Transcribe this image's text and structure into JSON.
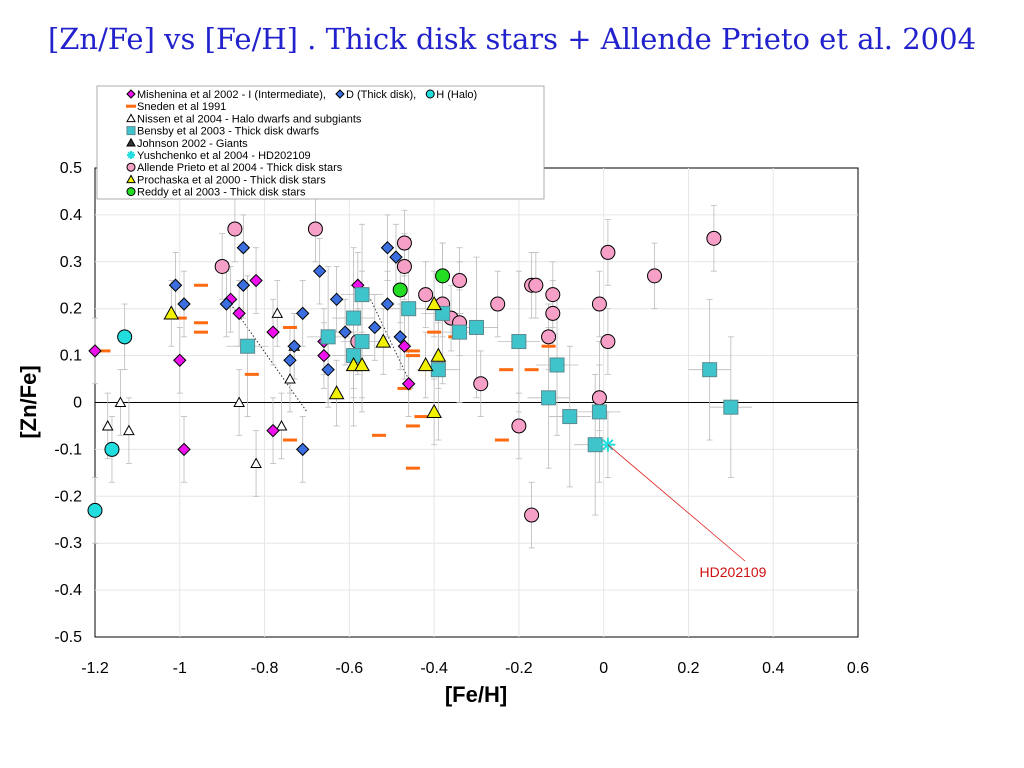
{
  "slide": {
    "title": "[Zn/Fe] vs [Fe/H] . Thick disk stars + Allende Prieto et al. 2004"
  },
  "chart_data": {
    "type": "scatter",
    "title": "",
    "xlabel": "[Fe/H]",
    "ylabel": "[Zn/Fe]",
    "xlim": [
      -1.2,
      0.6
    ],
    "ylim": [
      -0.5,
      0.5
    ],
    "x_ticks": [
      "-1.2",
      "-1",
      "-0.8",
      "-0.6",
      "-0.4",
      "-0.2",
      "0",
      "0.2",
      "0.4",
      "0.6"
    ],
    "y_ticks": [
      "0.5",
      "0.4",
      "0.3",
      "0.2",
      "0.1",
      "0",
      "-0.1",
      "-0.2",
      "-0.3",
      "-0.4",
      "-0.5"
    ],
    "grid": true,
    "legend_placement": "top-left",
    "legend_rows": [
      {
        "items": [
          {
            "marker": "diamond",
            "color": "#ee11ee",
            "label": "Mishenina et al 2002 -  I (Intermediate),"
          },
          {
            "marker": "diamond",
            "color": "#3b6fe0",
            "label": "D (Thick disk),"
          },
          {
            "marker": "circle",
            "color": "#22dddd",
            "label": "H (Halo)"
          }
        ]
      },
      {
        "items": [
          {
            "marker": "dash",
            "color": "#ff6a10",
            "label": "Sneden et al 1991"
          }
        ]
      },
      {
        "items": [
          {
            "marker": "triangle-open",
            "color": "#ffffff",
            "label": "Nissen et al 2004 - Halo dwarfs and subgiants"
          }
        ]
      },
      {
        "items": [
          {
            "marker": "square",
            "color": "#40c4cc",
            "label": "Bensby et al 2003 - Thick disk dwarfs"
          }
        ]
      },
      {
        "items": [
          {
            "marker": "triangle-filled",
            "color": "#333333",
            "label": "Johnson 2002 - Giants"
          }
        ]
      },
      {
        "items": [
          {
            "marker": "star",
            "color": "#22dddd",
            "label": "Yushchenko et al 2004 - HD202109"
          }
        ]
      },
      {
        "items": [
          {
            "marker": "circle",
            "color": "#f6a0c8",
            "label": "Allende Prieto et al 2004 - Thick disk stars"
          }
        ]
      },
      {
        "items": [
          {
            "marker": "triangle",
            "color": "#f2f200",
            "label": "Prochaska et al 2000 - Thick disk stars"
          }
        ]
      },
      {
        "items": [
          {
            "marker": "circle",
            "color": "#22dd22",
            "label": "Reddy et al 2003 - Thick disk stars"
          }
        ]
      }
    ],
    "annotation": {
      "text": "HD202109",
      "x": 0.01,
      "y": -0.09
    },
    "series": [
      {
        "name": "Mishenina et al 2002 - I (Intermediate)",
        "marker": "diamond",
        "color": "#ee11ee",
        "points": [
          [
            -1.2,
            0.11
          ],
          [
            -1.0,
            0.09
          ],
          [
            -0.99,
            -0.1
          ],
          [
            -0.88,
            0.22
          ],
          [
            -0.86,
            0.19
          ],
          [
            -0.82,
            0.26
          ],
          [
            -0.78,
            0.15
          ],
          [
            -0.78,
            -0.06
          ],
          [
            -0.66,
            0.1
          ],
          [
            -0.66,
            0.13
          ],
          [
            -0.58,
            0.25
          ],
          [
            -0.47,
            0.12
          ],
          [
            -0.46,
            0.04
          ]
        ]
      },
      {
        "name": "Mishenina et al 2002 - D (Thick disk)",
        "marker": "diamond",
        "color": "#3b6fe0",
        "points": [
          [
            -1.01,
            0.25
          ],
          [
            -0.99,
            0.21
          ],
          [
            -0.89,
            0.21
          ],
          [
            -0.85,
            0.33
          ],
          [
            -0.85,
            0.25
          ],
          [
            -0.74,
            0.09
          ],
          [
            -0.73,
            0.12
          ],
          [
            -0.71,
            0.19
          ],
          [
            -0.71,
            -0.1
          ],
          [
            -0.67,
            0.28
          ],
          [
            -0.65,
            0.07
          ],
          [
            -0.63,
            0.22
          ],
          [
            -0.61,
            0.15
          ],
          [
            -0.54,
            0.16
          ],
          [
            -0.51,
            0.33
          ],
          [
            -0.51,
            0.21
          ],
          [
            -0.49,
            0.31
          ],
          [
            -0.48,
            0.14
          ]
        ]
      },
      {
        "name": "Mishenina et al 2002 - H (Halo)",
        "marker": "circle",
        "color": "#22dddd",
        "points": [
          [
            -1.13,
            0.14
          ],
          [
            -1.16,
            -0.1
          ],
          [
            -1.2,
            -0.23
          ]
        ]
      },
      {
        "name": "Sneden et al 1991",
        "marker": "dash",
        "color": "#ff6a10",
        "points": [
          [
            -1.18,
            0.11
          ],
          [
            -0.95,
            0.25
          ],
          [
            -0.95,
            0.17
          ],
          [
            -0.95,
            0.15
          ],
          [
            -1.0,
            0.18
          ],
          [
            -0.83,
            0.06
          ],
          [
            -0.74,
            0.16
          ],
          [
            -0.74,
            -0.08
          ],
          [
            -0.53,
            -0.07
          ],
          [
            -0.47,
            0.03
          ],
          [
            -0.45,
            0.11
          ],
          [
            -0.45,
            0.1
          ],
          [
            -0.45,
            -0.05
          ],
          [
            -0.45,
            -0.14
          ],
          [
            -0.43,
            -0.03
          ],
          [
            -0.4,
            0.15
          ],
          [
            -0.35,
            0.14
          ],
          [
            -0.24,
            -0.08
          ],
          [
            -0.23,
            0.07
          ],
          [
            -0.17,
            0.07
          ],
          [
            -0.13,
            0.12
          ]
        ]
      },
      {
        "name": "Nissen et al 2004 - Halo dwarfs and subgiants",
        "marker": "triangle-open",
        "color": "#ffffff",
        "points": [
          [
            -1.17,
            -0.05
          ],
          [
            -1.14,
            0.0
          ],
          [
            -1.12,
            -0.06
          ],
          [
            -0.86,
            0.0
          ],
          [
            -0.82,
            -0.13
          ],
          [
            -0.77,
            0.19
          ],
          [
            -0.76,
            -0.05
          ],
          [
            -0.74,
            0.05
          ],
          [
            -0.73,
            0.12
          ]
        ]
      },
      {
        "name": "Bensby et al 2003 - Thick disk dwarfs",
        "marker": "square",
        "color": "#40c4cc",
        "points": [
          [
            -0.84,
            0.12
          ],
          [
            -0.65,
            0.14
          ],
          [
            -0.59,
            0.18
          ],
          [
            -0.59,
            0.1
          ],
          [
            -0.57,
            0.23
          ],
          [
            -0.57,
            0.13
          ],
          [
            -0.46,
            0.2
          ],
          [
            -0.39,
            0.07
          ],
          [
            -0.38,
            0.19
          ],
          [
            -0.34,
            0.15
          ],
          [
            -0.3,
            0.16
          ],
          [
            -0.2,
            0.13
          ],
          [
            -0.13,
            0.01
          ],
          [
            -0.11,
            0.08
          ],
          [
            -0.08,
            -0.03
          ],
          [
            -0.02,
            -0.09
          ],
          [
            -0.01,
            -0.02
          ],
          [
            0.25,
            0.07
          ],
          [
            0.3,
            -0.01
          ]
        ]
      },
      {
        "name": "Johnson 2002 - Giants",
        "marker": "triangle-filled",
        "color": "#333333",
        "points": []
      },
      {
        "name": "Yushchenko et al 2004 - HD202109",
        "marker": "star",
        "color": "#22dddd",
        "points": [
          [
            0.01,
            -0.09
          ]
        ]
      },
      {
        "name": "Allende Prieto et al 2004 - Thick disk stars",
        "marker": "circle",
        "color": "#f6a0c8",
        "points": [
          [
            -0.9,
            0.29
          ],
          [
            -0.87,
            0.37
          ],
          [
            -0.68,
            0.37
          ],
          [
            -0.58,
            0.13
          ],
          [
            -0.47,
            0.34
          ],
          [
            -0.47,
            0.29
          ],
          [
            -0.42,
            0.23
          ],
          [
            -0.38,
            0.21
          ],
          [
            -0.36,
            0.18
          ],
          [
            -0.34,
            0.26
          ],
          [
            -0.34,
            0.17
          ],
          [
            -0.29,
            0.04
          ],
          [
            -0.25,
            0.21
          ],
          [
            -0.2,
            -0.05
          ],
          [
            -0.17,
            0.25
          ],
          [
            -0.16,
            0.25
          ],
          [
            -0.17,
            -0.24
          ],
          [
            -0.13,
            0.14
          ],
          [
            -0.12,
            0.23
          ],
          [
            -0.12,
            0.19
          ],
          [
            -0.01,
            0.21
          ],
          [
            -0.01,
            0.01
          ],
          [
            0.01,
            0.32
          ],
          [
            0.01,
            0.13
          ],
          [
            0.12,
            0.27
          ],
          [
            0.26,
            0.35
          ]
        ]
      },
      {
        "name": "Prochaska et al 2000 - Thick disk stars",
        "marker": "triangle",
        "color": "#f2f200",
        "points": [
          [
            -1.02,
            0.19
          ],
          [
            -0.63,
            0.02
          ],
          [
            -0.59,
            0.08
          ],
          [
            -0.57,
            0.08
          ],
          [
            -0.52,
            0.13
          ],
          [
            -0.42,
            0.08
          ],
          [
            -0.4,
            0.21
          ],
          [
            -0.39,
            0.1
          ],
          [
            -0.4,
            -0.02
          ]
        ]
      },
      {
        "name": "Reddy et al 2003 - Thick disk stars",
        "marker": "circle",
        "color": "#22dd22",
        "points": [
          [
            -0.48,
            0.24
          ],
          [
            -0.38,
            0.27
          ]
        ]
      }
    ]
  }
}
